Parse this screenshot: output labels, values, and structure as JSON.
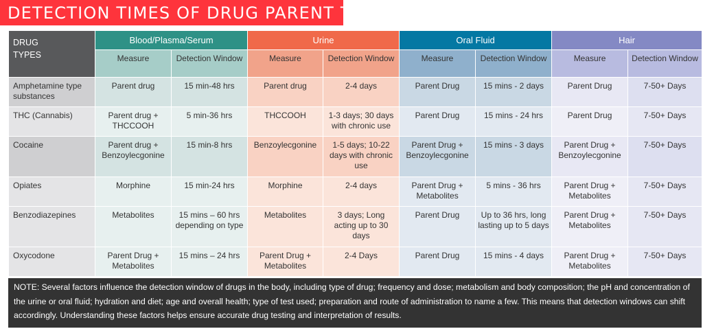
{
  "title": "DETECTION TIMES OF DRUG PARENT TYPES",
  "header": {
    "drug_types": "DRUG TYPES",
    "groups": [
      "Blood/Plasma/Serum",
      "Urine",
      "Oral Fluid",
      "Hair"
    ],
    "measure": "Measure",
    "window": "Detection Window"
  },
  "rows": [
    {
      "drug": "Amphetamine type substances",
      "cells": [
        "Parent drug",
        "15 min-48 hrs",
        "Parent drug",
        "2-4 days",
        "Parent Drug",
        "15 mins - 2 days",
        "Parent Drug",
        "7-50+ Days"
      ]
    },
    {
      "drug": "THC (Cannabis)",
      "cells": [
        "Parent drug + THCCOOH",
        "5 min-36 hrs",
        "THCCOOH",
        "1-3 days; 30 days with chronic use",
        "Parent Drug",
        "15 mins - 24 hrs",
        "Parent Drug",
        "7-50+ Days"
      ]
    },
    {
      "drug": "Cocaine",
      "cells": [
        "Parent drug + Benzoylecgonine",
        "15 min-8 hrs",
        "Benzoylecgonine",
        "1-5 days; 10-22 days with chronic use",
        "Parent Drug + Benzoylecgonine",
        "15 mins - 3 days",
        "Parent Drug + Benzoylecgonine",
        "7-50+ Days"
      ]
    },
    {
      "drug": "Opiates",
      "cells": [
        "Morphine",
        "15 min-24 hrs",
        "Morphine",
        "2-4 days",
        "Parent Drug + Metabolites",
        "5 mins - 36 hrs",
        "Parent Drug + Metabolites",
        "7-50+ Days"
      ]
    },
    {
      "drug": "Benzodiazepines",
      "cells": [
        "Metabolites",
        "15 mins – 60 hrs depending on type",
        "Metabolites",
        "3 days; Long acting up to 30 days",
        "Parent Drug",
        "Up to 36 hrs, long lasting up to 5 days",
        "Parent Drug + Metabolites",
        "7-50+ Days"
      ]
    },
    {
      "drug": "Oxycodone",
      "cells": [
        "Parent Drug + Metabolites",
        "15 mins – 24 hrs",
        "Parent Drug + Metabolites",
        "2-4 Days",
        "Parent Drug",
        "15 mins - 4 days",
        "Parent Drug + Metabolites",
        "7-50+ Days"
      ]
    }
  ],
  "note": "NOTE: Several factors influence the detection window of drugs in the body, including type of drug; frequency and dose; metabolism and body composition; the pH and concentration of the urine or oral fluid; hydration and diet; age and overall health; type of test used; preparation and route of administration to name a few. This means that detection windows can shift accordingly. Understanding these factors helps ensure accurate drug testing and interpretation of results."
}
